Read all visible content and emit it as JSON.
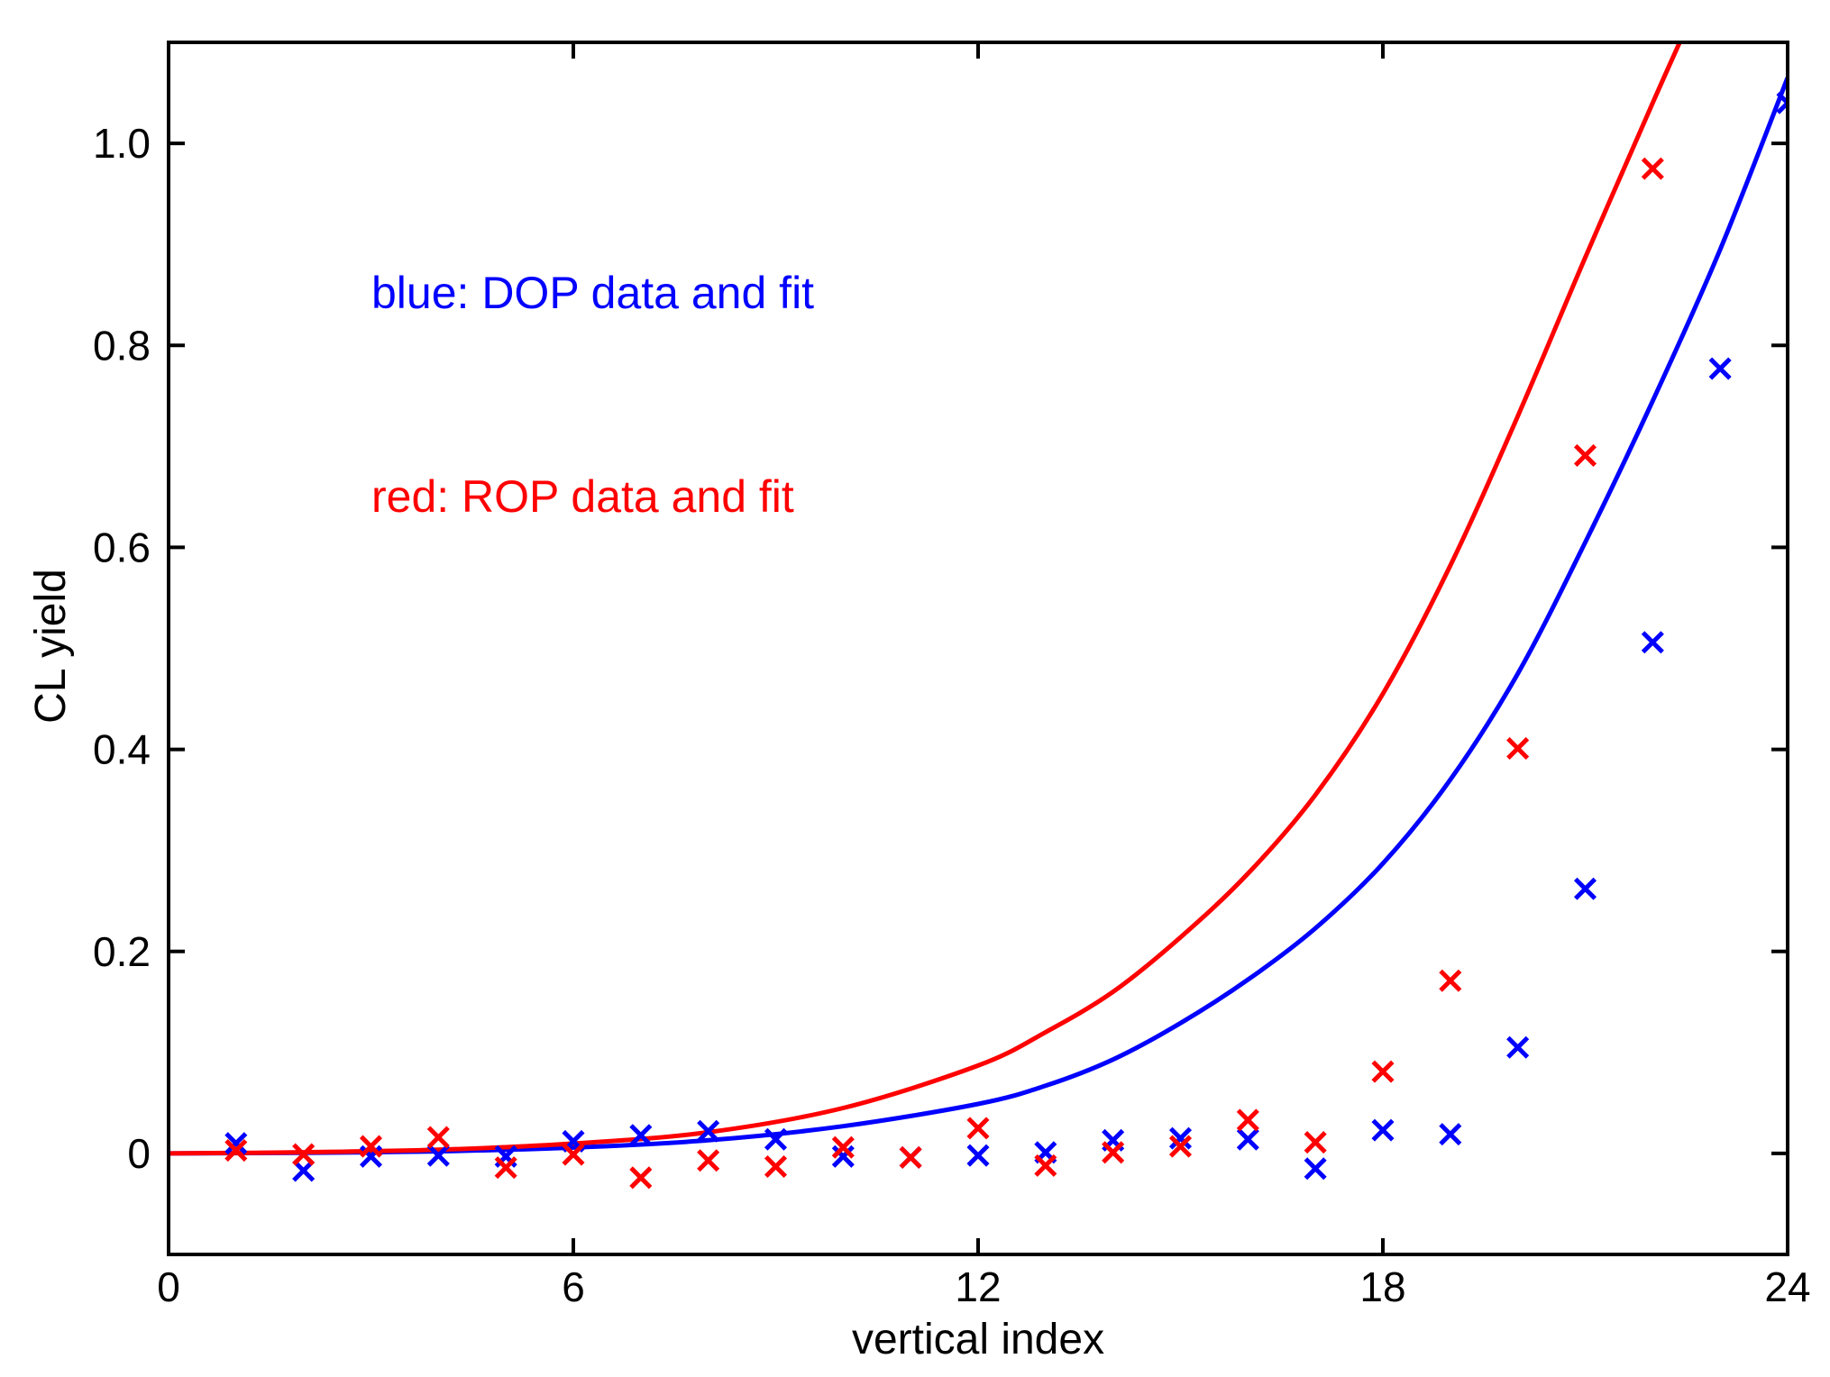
{
  "chart_data": {
    "type": "scatter",
    "title": "",
    "xlabel": "vertical index",
    "ylabel": "CL yield",
    "xlim": [
      0,
      24
    ],
    "ylim": [
      -0.1,
      1.1
    ],
    "xticks": [
      0,
      6,
      12,
      18,
      24
    ],
    "xtick_labels": [
      "0",
      "6",
      "12",
      "18",
      "24"
    ],
    "yticks": [
      0,
      0.2,
      0.4,
      0.6,
      0.8,
      1.0
    ],
    "ytick_labels": [
      "0",
      "0.2",
      "0.4",
      "0.6",
      "0.8",
      "1.0"
    ],
    "grid": false,
    "annotations": [
      {
        "text": "blue: DOP data and fit",
        "color": "#0000ff"
      },
      {
        "text": "red: ROP data and fit",
        "color": "#ff0000"
      }
    ],
    "series": [
      {
        "name": "DOP data",
        "marker": "x",
        "color": "#0000ff",
        "x": [
          1,
          2,
          3,
          4,
          5,
          6,
          7,
          8,
          9,
          10,
          11,
          12,
          13,
          14,
          15,
          16,
          17,
          18,
          19,
          20,
          21,
          22,
          23,
          24
        ],
        "y": [
          0.01,
          -0.017,
          -0.003,
          -0.002,
          -0.003,
          0.012,
          0.018,
          0.022,
          0.014,
          -0.003,
          -0.004,
          -0.002,
          0.001,
          0.013,
          0.015,
          0.014,
          -0.015,
          0.023,
          0.019,
          0.105,
          0.262,
          0.506,
          0.777,
          1.04
        ]
      },
      {
        "name": "ROP data",
        "marker": "x",
        "color": "#ff0000",
        "x": [
          1,
          2,
          3,
          4,
          5,
          6,
          7,
          8,
          9,
          10,
          11,
          12,
          13,
          14,
          15,
          16,
          17,
          18,
          19,
          20,
          21,
          22
        ],
        "y": [
          0.003,
          -0.001,
          0.007,
          0.016,
          -0.014,
          -0.001,
          -0.024,
          -0.007,
          -0.013,
          0.006,
          -0.004,
          0.025,
          -0.012,
          0.001,
          0.007,
          0.033,
          0.011,
          0.081,
          0.171,
          0.401,
          0.691,
          0.975
        ]
      },
      {
        "name": "DOP fit",
        "type": "line",
        "color": "#0000ff",
        "x": [
          0,
          2,
          4,
          6,
          8,
          10,
          12,
          13,
          14,
          15,
          16,
          17,
          18,
          19,
          20,
          21,
          22,
          23,
          24
        ],
        "y": [
          0,
          0.0006,
          0.0021,
          0.0058,
          0.013,
          0.027,
          0.049,
          0.067,
          0.093,
          0.129,
          0.172,
          0.223,
          0.287,
          0.37,
          0.475,
          0.605,
          0.745,
          0.895,
          1.065
        ]
      },
      {
        "name": "ROP fit",
        "type": "line",
        "color": "#ff0000",
        "x": [
          0,
          2,
          4,
          6,
          8,
          10,
          12,
          13,
          14,
          15,
          16,
          17,
          18,
          19,
          20,
          21,
          22,
          22.4
        ],
        "y": [
          0,
          0.0012,
          0.0037,
          0.0098,
          0.021,
          0.045,
          0.087,
          0.12,
          0.16,
          0.214,
          0.277,
          0.355,
          0.455,
          0.582,
          0.73,
          0.887,
          1.04,
          1.1
        ]
      }
    ]
  }
}
